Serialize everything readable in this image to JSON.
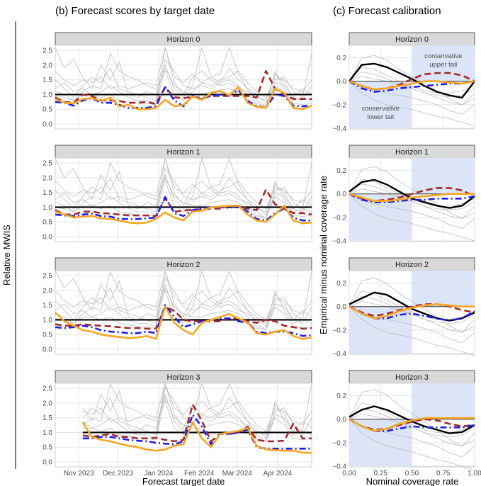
{
  "chart_data": [
    {
      "type": "line",
      "title": "(b) Forecast scores by target date",
      "xlabel": "Forecast target date",
      "ylabel": "Relative MWIS",
      "ylim": [
        0,
        2.6
      ],
      "yticks": [
        "0.0",
        "0.5",
        "1.0",
        "1.5",
        "2.0",
        "2.5"
      ],
      "xticks": [
        {
          "label": "Nov 2023",
          "day": 18
        },
        {
          "label": "Dec 2023",
          "day": 48
        },
        {
          "label": "Jan 2024",
          "day": 79
        },
        {
          "label": "Feb 2024",
          "day": 110
        },
        {
          "label": "Mar 2024",
          "day": 139
        },
        {
          "label": "Apr 2024",
          "day": 170
        }
      ],
      "xlim_days": [
        0,
        196
      ],
      "step_days": 7,
      "panels": [
        {
          "label": "Horizon 0",
          "ensemble": [
            0.85,
            0.72,
            0.7,
            0.85,
            0.88,
            0.78,
            0.9,
            0.6,
            0.65,
            0.5,
            0.5,
            0.55,
            0.82,
            0.6,
            0.65,
            0.93,
            0.82,
            1.05,
            1.12,
            0.98,
            1.25,
            0.72,
            0.58,
            0.55,
            1.2,
            1.05,
            0.55,
            0.5,
            0.62
          ],
          "blue": [
            0.75,
            0.72,
            0.62,
            0.8,
            0.88,
            0.72,
            0.72,
            0.65,
            0.55,
            0.55,
            0.55,
            0.6,
            1.25,
            0.8,
            0.6,
            0.95,
            0.85,
            0.95,
            1.0,
            0.98,
            1.15,
            0.78,
            0.6,
            0.55,
            1.0,
            0.95,
            0.62,
            0.6,
            0.62
          ],
          "red": [
            0.9,
            0.75,
            0.72,
            1.0,
            0.95,
            0.8,
            0.8,
            0.78,
            0.72,
            0.72,
            0.75,
            0.68,
            1.25,
            0.9,
            0.88,
            0.92,
            0.88,
            0.95,
            0.95,
            0.95,
            0.95,
            0.95,
            0.9,
            1.8,
            1.2,
            1.0,
            0.85,
            0.85,
            0.85
          ]
        },
        {
          "label": "Horizon 1",
          "ensemble": [
            0.85,
            0.75,
            0.65,
            0.68,
            0.7,
            0.62,
            0.6,
            0.55,
            0.48,
            0.45,
            0.48,
            0.6,
            0.82,
            0.65,
            0.55,
            0.85,
            0.88,
            1.0,
            1.02,
            1.05,
            1.05,
            0.75,
            0.55,
            0.5,
            0.75,
            1.05,
            0.55,
            0.45,
            0.48
          ],
          "blue": [
            0.75,
            0.72,
            0.7,
            0.75,
            0.78,
            0.7,
            0.68,
            0.6,
            0.6,
            0.6,
            0.62,
            0.65,
            1.35,
            0.8,
            0.7,
            0.9,
            0.95,
            1.0,
            1.0,
            0.98,
            1.05,
            0.85,
            0.6,
            0.55,
            0.8,
            0.95,
            0.65,
            0.55,
            0.55
          ],
          "red": [
            0.9,
            0.75,
            0.75,
            0.85,
            0.85,
            0.8,
            0.78,
            0.75,
            0.72,
            0.72,
            0.72,
            0.7,
            1.3,
            0.85,
            0.88,
            0.92,
            0.92,
            0.95,
            0.95,
            1.05,
            1.05,
            0.95,
            0.9,
            1.6,
            1.1,
            0.95,
            0.8,
            0.8,
            0.75
          ]
        },
        {
          "label": "Horizon 2",
          "ensemble": [
            1.25,
            0.95,
            0.8,
            0.65,
            0.6,
            0.5,
            0.45,
            0.42,
            0.38,
            0.4,
            0.45,
            0.35,
            1.45,
            0.9,
            0.65,
            0.5,
            0.9,
            1.0,
            1.1,
            1.2,
            1.05,
            0.9,
            0.55,
            0.5,
            0.6,
            0.65,
            0.45,
            0.35,
            0.4
          ],
          "blue": [
            0.75,
            0.72,
            0.75,
            0.8,
            0.75,
            0.65,
            0.6,
            0.58,
            0.55,
            0.55,
            0.6,
            0.55,
            1.5,
            1.1,
            0.75,
            0.85,
            0.95,
            1.0,
            1.05,
            1.05,
            0.95,
            0.9,
            0.6,
            0.55,
            0.6,
            0.6,
            0.55,
            0.45,
            0.48
          ],
          "red": [
            0.85,
            0.8,
            0.8,
            0.85,
            0.82,
            0.8,
            0.78,
            0.75,
            0.72,
            0.72,
            0.7,
            0.7,
            1.45,
            1.3,
            1.0,
            0.95,
            0.95,
            0.95,
            0.95,
            1.05,
            1.05,
            0.95,
            0.9,
            1.0,
            0.95,
            0.8,
            0.75,
            0.7,
            0.72
          ]
        },
        {
          "label": "Horizon 3",
          "ensemble": [
            null,
            null,
            null,
            1.35,
            0.85,
            0.75,
            0.7,
            0.62,
            0.55,
            0.5,
            0.42,
            0.38,
            0.42,
            0.55,
            0.6,
            1.35,
            0.8,
            0.5,
            0.95,
            1.0,
            1.05,
            1.15,
            0.55,
            0.42,
            0.4,
            0.38,
            0.38,
            0.32,
            0.3
          ],
          "blue": [
            null,
            null,
            null,
            0.8,
            0.8,
            0.85,
            0.85,
            0.8,
            0.75,
            0.72,
            0.7,
            0.65,
            0.62,
            0.6,
            0.7,
            1.6,
            1.2,
            0.6,
            0.95,
            0.95,
            1.0,
            1.1,
            0.5,
            0.45,
            0.45,
            0.45,
            0.45,
            0.45,
            0.45
          ],
          "red": [
            null,
            null,
            null,
            0.9,
            0.85,
            0.9,
            0.95,
            0.85,
            0.85,
            0.8,
            0.8,
            0.82,
            0.75,
            0.7,
            0.75,
            1.95,
            1.4,
            0.7,
            0.95,
            0.95,
            1.0,
            1.2,
            0.75,
            0.7,
            0.7,
            0.72,
            1.3,
            0.8,
            0.8
          ]
        }
      ],
      "baseline": 1.0,
      "other_models": [
        [
          1.5,
          1.2,
          0.9,
          1.3,
          1.6,
          1.4,
          1.9,
          1.2,
          1.1,
          1.0,
          0.9,
          0.8,
          2.6,
          1.4,
          1.0,
          1.6,
          1.8,
          1.5,
          1.3,
          1.4,
          1.2,
          1.1,
          0.9,
          0.8,
          1.7,
          1.4,
          0.9,
          1.2,
          1.0
        ],
        [
          2.6,
          1.9,
          2.2,
          1.6,
          1.2,
          2.0,
          1.5,
          2.1,
          1.0,
          0.9,
          1.1,
          1.0,
          2.0,
          1.2,
          0.9,
          1.3,
          2.6,
          1.6,
          1.4,
          1.9,
          1.5,
          1.2,
          1.0,
          0.7,
          1.5,
          1.6,
          1.1,
          0.9,
          2.4
        ],
        [
          1.1,
          1.0,
          0.8,
          1.1,
          1.3,
          1.2,
          2.4,
          1.8,
          1.6,
          1.5,
          1.3,
          1.2,
          1.8,
          1.0,
          0.8,
          1.1,
          1.4,
          1.6,
          1.7,
          2.6,
          1.7,
          1.2,
          0.8,
          0.6,
          1.8,
          1.2,
          0.8,
          0.9,
          0.8
        ],
        [
          1.2,
          1.4,
          1.1,
          1.2,
          1.0,
          1.1,
          1.3,
          1.1,
          0.9,
          0.8,
          0.8,
          0.7,
          2.2,
          1.8,
          1.3,
          1.2,
          1.3,
          1.2,
          1.4,
          1.5,
          1.3,
          1.0,
          0.7,
          0.6,
          1.4,
          1.3,
          0.9,
          0.8,
          1.3
        ],
        [
          0.95,
          0.9,
          0.8,
          1.0,
          1.0,
          0.9,
          1.0,
          0.8,
          0.75,
          0.7,
          0.7,
          0.65,
          1.9,
          1.3,
          1.1,
          1.0,
          1.0,
          1.1,
          1.15,
          1.2,
          1.1,
          0.85,
          0.65,
          0.6,
          1.3,
          1.1,
          0.7,
          0.65,
          0.7
        ],
        [
          1.8,
          1.5,
          1.3,
          1.5,
          1.4,
          1.6,
          1.2,
          1.3,
          1.2,
          1.3,
          1.4,
          1.3,
          2.6,
          1.6,
          1.4,
          1.7,
          1.4,
          1.3,
          1.5,
          1.6,
          1.8,
          1.4,
          1.1,
          0.9,
          1.6,
          1.5,
          1.2,
          1.1,
          1.5
        ]
      ]
    },
    {
      "type": "line",
      "title": "(c) Forecast calibration",
      "xlabel": "Nominal coverage rate",
      "ylabel": "Empirical minus nominal coverage rate",
      "ylim": [
        -0.4,
        0.3
      ],
      "xlim": [
        0,
        1
      ],
      "xticks": [
        "0.00",
        "0.25",
        "0.50",
        "0.75",
        "1.00"
      ],
      "yticks": [
        "-0.4",
        "-0.2",
        "0.0",
        "0.2"
      ],
      "x": [
        0,
        0.1,
        0.2,
        0.3,
        0.4,
        0.5,
        0.6,
        0.7,
        0.8,
        0.9,
        1.0
      ],
      "annotations": {
        "upper": "conservative upper tail",
        "lower": "conservative lower tail"
      },
      "panels": [
        {
          "label": "Horizon 0",
          "black": [
            0,
            0.14,
            0.15,
            0.12,
            0.07,
            0.02,
            -0.04,
            -0.09,
            -0.12,
            -0.14,
            0
          ],
          "red": [
            0,
            -0.04,
            -0.07,
            -0.06,
            -0.03,
            0.02,
            0.06,
            0.07,
            0.07,
            0.05,
            0
          ],
          "blue": [
            0,
            -0.06,
            -0.09,
            -0.08,
            -0.06,
            -0.05,
            -0.04,
            -0.03,
            -0.02,
            -0.02,
            0
          ],
          "ensemble": [
            0,
            -0.04,
            -0.07,
            -0.06,
            -0.04,
            -0.02,
            0,
            0,
            -0.01,
            -0.02,
            0
          ]
        },
        {
          "label": "Horizon 1",
          "black": [
            0.02,
            0.1,
            0.12,
            0.08,
            0.02,
            -0.04,
            -0.07,
            -0.1,
            -0.12,
            -0.1,
            -0.02
          ],
          "red": [
            0,
            -0.04,
            -0.06,
            -0.05,
            -0.03,
            0,
            0.03,
            0.05,
            0.05,
            0.03,
            -0.02
          ],
          "blue": [
            0,
            -0.05,
            -0.07,
            -0.07,
            -0.06,
            -0.05,
            -0.05,
            -0.04,
            -0.04,
            -0.04,
            -0.02
          ],
          "ensemble": [
            0,
            -0.03,
            -0.06,
            -0.06,
            -0.05,
            -0.03,
            -0.02,
            -0.01,
            0,
            0,
            0
          ]
        },
        {
          "label": "Horizon 2",
          "black": [
            0.02,
            0.07,
            0.12,
            0.1,
            0.04,
            -0.02,
            -0.06,
            -0.1,
            -0.12,
            -0.1,
            -0.05
          ],
          "red": [
            0,
            -0.05,
            -0.08,
            -0.06,
            -0.03,
            0,
            0.02,
            0.02,
            0,
            -0.03,
            -0.05
          ],
          "blue": [
            0,
            -0.06,
            -0.1,
            -0.1,
            -0.07,
            -0.06,
            -0.08,
            -0.1,
            -0.12,
            -0.1,
            -0.04
          ],
          "ensemble": [
            0,
            -0.06,
            -0.1,
            -0.08,
            -0.04,
            -0.01,
            0.01,
            0.02,
            0.01,
            0,
            0
          ]
        },
        {
          "label": "Horizon 3",
          "black": [
            0.02,
            0.08,
            0.11,
            0.08,
            0.03,
            -0.02,
            -0.06,
            -0.09,
            -0.12,
            -0.11,
            -0.05
          ],
          "red": [
            0,
            -0.06,
            -0.09,
            -0.08,
            -0.05,
            -0.02,
            0,
            -0.01,
            -0.04,
            -0.06,
            -0.05
          ],
          "blue": [
            0,
            -0.06,
            -0.1,
            -0.1,
            -0.08,
            -0.06,
            -0.07,
            -0.07,
            -0.07,
            -0.07,
            -0.05
          ],
          "ensemble": [
            0,
            -0.06,
            -0.1,
            -0.08,
            -0.04,
            -0.01,
            0.01,
            0.01,
            0.01,
            0.01,
            0.01
          ]
        }
      ],
      "other_models": [
        [
          0,
          0.2,
          0.22,
          0.18,
          0.1,
          0.04,
          -0.02,
          -0.08,
          -0.15,
          -0.2,
          -0.1
        ],
        [
          0,
          0.08,
          0.06,
          0.02,
          -0.02,
          -0.06,
          -0.1,
          -0.14,
          -0.18,
          -0.2,
          -0.15
        ],
        [
          0,
          -0.1,
          -0.16,
          -0.2,
          -0.22,
          -0.24,
          -0.27,
          -0.3,
          -0.32,
          -0.35,
          -0.38
        ],
        [
          0,
          0.04,
          0.02,
          0,
          -0.03,
          -0.06,
          -0.1,
          -0.12,
          -0.13,
          -0.12,
          -0.06
        ],
        [
          0,
          0.12,
          0.1,
          0.05,
          0,
          -0.04,
          -0.08,
          -0.1,
          -0.1,
          -0.08,
          -0.04
        ],
        [
          0,
          -0.05,
          -0.08,
          -0.1,
          -0.12,
          -0.14,
          -0.17,
          -0.2,
          -0.25,
          -0.28,
          -0.2
        ]
      ]
    }
  ],
  "colors": {
    "ensemble": "#f5a623",
    "blue": "#1f1fe6",
    "red": "#a52a2a",
    "baseline": "#000000",
    "grey": "#bdbdbd",
    "shade": "#dbe5f7",
    "strip": "#d9d9d9"
  }
}
